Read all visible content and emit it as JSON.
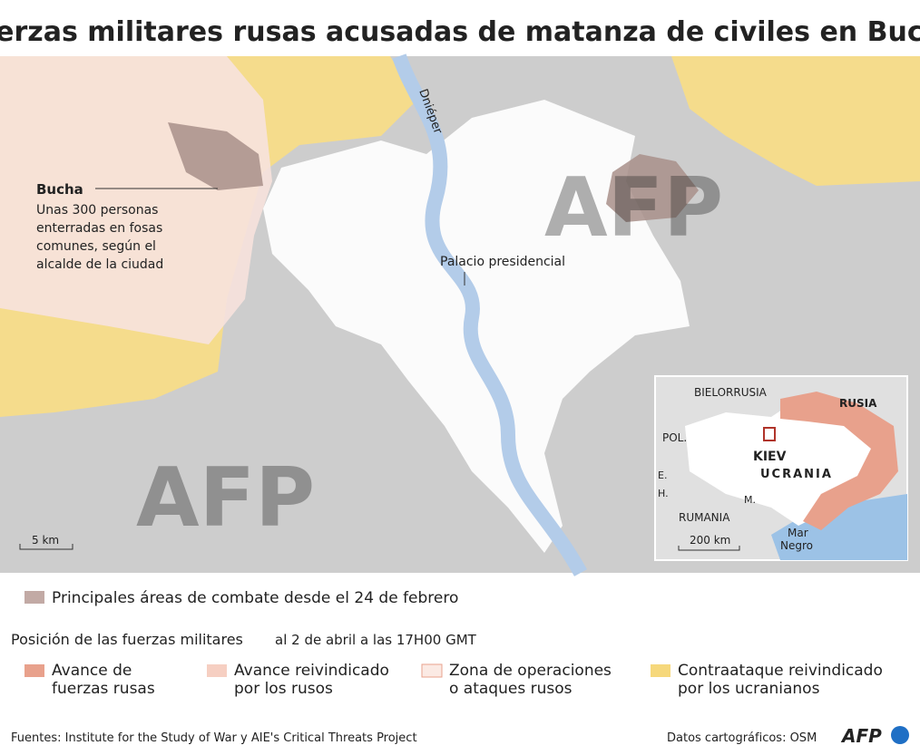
{
  "title": "Fuerzas militares rusas acusadas de matanza de civiles en Bucha",
  "map": {
    "river": "Dniéper",
    "bucha_title": "Bucha",
    "bucha_note": [
      "Unas 300 personas",
      "enterradas en fosas",
      "comunes, según el",
      "alcalde de la ciudad"
    ],
    "palace": "Palacio presidencial",
    "scale": "5 km",
    "watermark": "AFP"
  },
  "inset": {
    "belarus": "BIELORRUSIA",
    "russia": "RUSIA",
    "poland": "POL.",
    "kiev": "KIEV",
    "ukraine": "UCRANIA",
    "slovakia": "E.",
    "hungary": "H.",
    "romania": "RUMANIA",
    "moldova": "M.",
    "scale": "200 km",
    "sea": [
      "Mar",
      "Negro"
    ]
  },
  "legend": {
    "combat": "Principales áreas de combate desde el 24 de febrero",
    "combat_color": "#c2aaa5",
    "heading": "Posición de las fuerzas militares",
    "date": "al 2 de abril a las 17H00 GMT",
    "items": [
      {
        "label": [
          "Avance de",
          "fuerzas rusas"
        ],
        "color": "#e8a18c"
      },
      {
        "label": [
          "Avance reivindicado",
          "por los rusos"
        ],
        "color": "#f6cfc2"
      },
      {
        "label": [
          "Zona de operaciones",
          "o ataques rusos"
        ],
        "color": "#fbeae4"
      },
      {
        "label": [
          "Contraataque reivindicado",
          "por los ucranianos"
        ],
        "color": "#f6d87c"
      }
    ]
  },
  "footer": {
    "sources": "Fuentes: Institute for the Study of War y AIE's Critical Threats Project",
    "credits": "Datos cartográficos: OSM",
    "logo": "AFP"
  }
}
